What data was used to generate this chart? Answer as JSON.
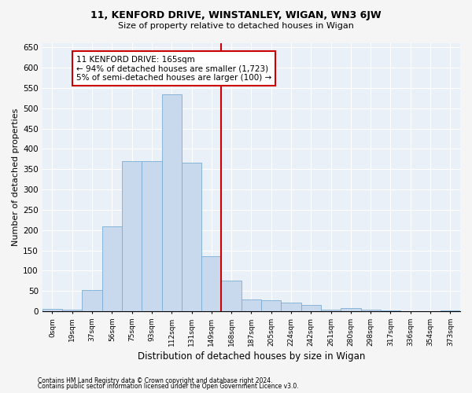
{
  "title1": "11, KENFORD DRIVE, WINSTANLEY, WIGAN, WN3 6JW",
  "title2": "Size of property relative to detached houses in Wigan",
  "xlabel": "Distribution of detached houses by size in Wigan",
  "ylabel": "Number of detached properties",
  "categories": [
    "0sqm",
    "19sqm",
    "37sqm",
    "56sqm",
    "75sqm",
    "93sqm",
    "112sqm",
    "131sqm",
    "149sqm",
    "168sqm",
    "187sqm",
    "205sqm",
    "224sqm",
    "242sqm",
    "261sqm",
    "280sqm",
    "298sqm",
    "317sqm",
    "336sqm",
    "354sqm",
    "373sqm"
  ],
  "bar_heights": [
    5,
    3,
    53,
    210,
    370,
    370,
    535,
    365,
    135,
    75,
    30,
    28,
    22,
    15,
    3,
    8,
    3,
    2,
    1,
    1,
    2
  ],
  "bar_color": "#c9d9ed",
  "bar_edge_color": "#7aadd4",
  "background_color": "#eaf0f8",
  "grid_color": "#ffffff",
  "vline_color": "#cc0000",
  "annotation_text": "11 KENFORD DRIVE: 165sqm\n← 94% of detached houses are smaller (1,723)\n5% of semi-detached houses are larger (100) →",
  "annotation_box_color": "#ffffff",
  "annotation_box_edge": "#cc0000",
  "ylim": [
    0,
    660
  ],
  "yticks": [
    0,
    50,
    100,
    150,
    200,
    250,
    300,
    350,
    400,
    450,
    500,
    550,
    600,
    650
  ],
  "footnote1": "Contains HM Land Registry data © Crown copyright and database right 2024.",
  "footnote2": "Contains public sector information licensed under the Open Government Licence v3.0.",
  "fig_facecolor": "#f5f5f5"
}
